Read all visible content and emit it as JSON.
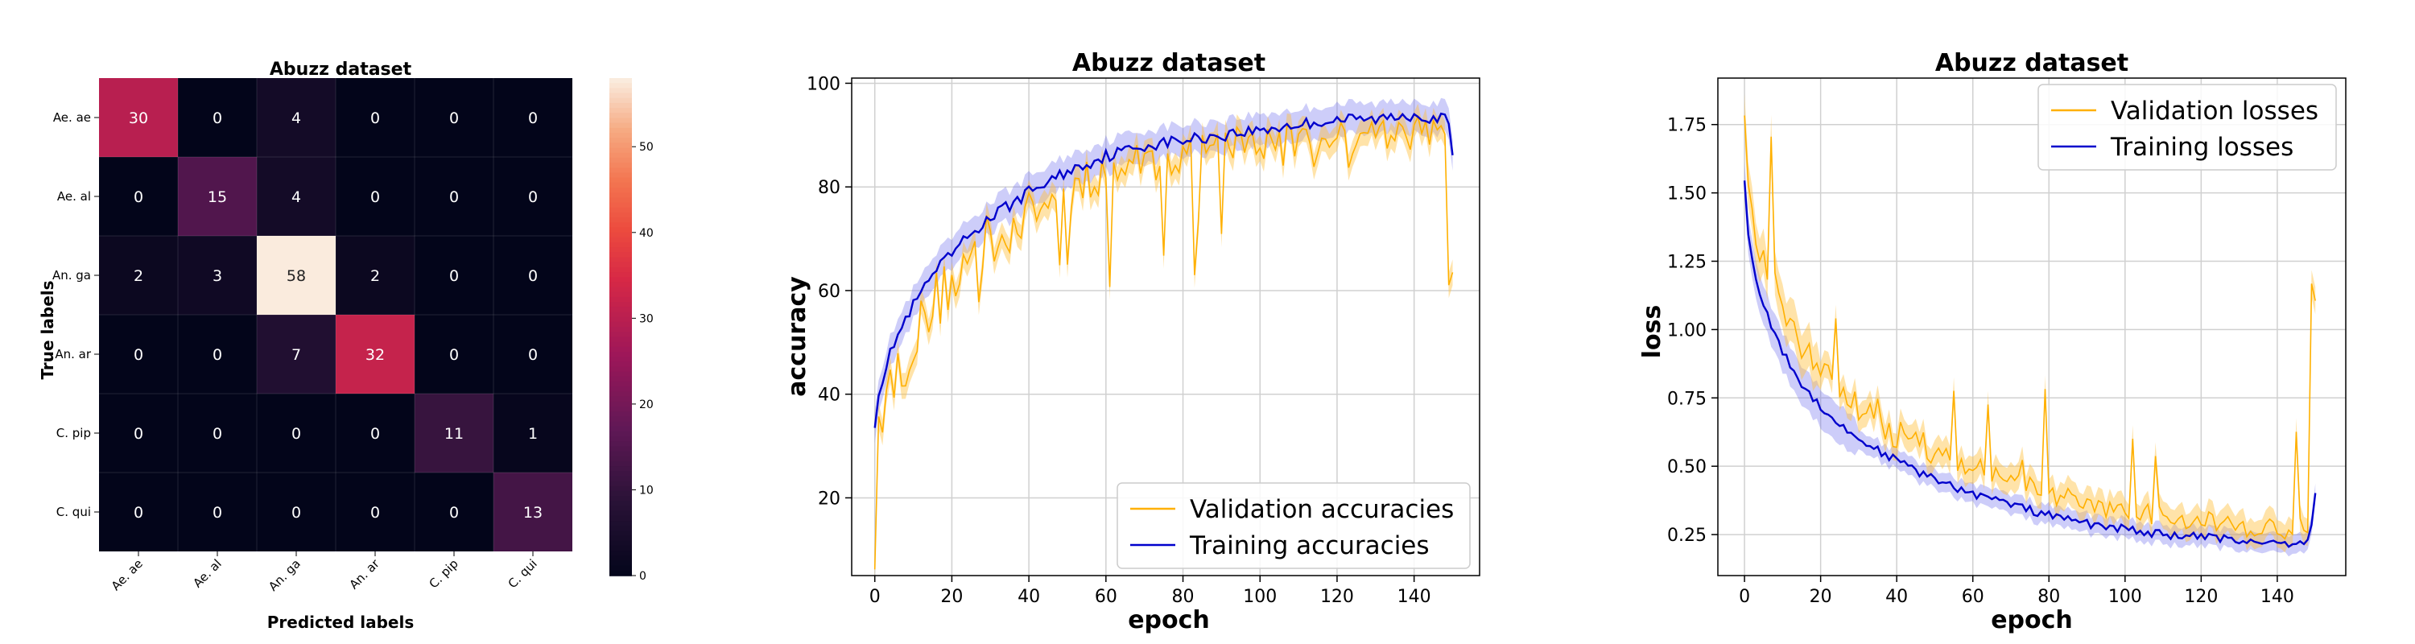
{
  "chart_data": [
    {
      "type": "heatmap",
      "title": "Abuzz dataset",
      "xlabel": "Predicted labels",
      "ylabel": "True labels",
      "x_categories": [
        "Ae. ae",
        "Ae. al",
        "An. ga",
        "An. ar",
        "C. pip",
        "C. qui"
      ],
      "y_categories": [
        "Ae. ae",
        "Ae. al",
        "An. ga",
        "An. ar",
        "C. pip",
        "C. qui"
      ],
      "values": [
        [
          30,
          0,
          4,
          0,
          0,
          0
        ],
        [
          0,
          15,
          4,
          0,
          0,
          0
        ],
        [
          2,
          3,
          58,
          2,
          0,
          0
        ],
        [
          0,
          0,
          7,
          32,
          0,
          0
        ],
        [
          0,
          0,
          0,
          0,
          11,
          1
        ],
        [
          0,
          0,
          0,
          0,
          0,
          13
        ]
      ],
      "colorbar": {
        "range": [
          0,
          58
        ],
        "ticks": [
          "0",
          "10",
          "20",
          "30",
          "40",
          "50"
        ],
        "colormap": "rocket"
      }
    },
    {
      "type": "line",
      "title": "Abuzz dataset",
      "xlabel": "epoch",
      "ylabel": "accuracy",
      "xlim": [
        -6,
        157
      ],
      "ylim": [
        5,
        101
      ],
      "xticks": [
        "0",
        "20",
        "40",
        "60",
        "80",
        "100",
        "120",
        "140"
      ],
      "yticks": [
        "20",
        "40",
        "60",
        "80",
        "100"
      ],
      "grid": true,
      "legend": "bottom-right",
      "series": [
        {
          "name": "Validation accuracies",
          "color": "#ffb000",
          "x": [
            0,
            1,
            2,
            5,
            10,
            15,
            20,
            25,
            30,
            40,
            50,
            60,
            70,
            80,
            90,
            100,
            110,
            120,
            130,
            140,
            148,
            149,
            150
          ],
          "y": [
            7,
            35,
            38,
            43,
            50,
            57,
            62,
            66,
            70,
            75,
            79,
            83,
            85,
            86,
            88,
            89,
            90,
            90,
            91,
            91,
            92,
            63,
            64
          ]
        },
        {
          "name": "Training accuracies",
          "color": "#0000cc",
          "x": [
            0,
            1,
            2,
            5,
            10,
            15,
            20,
            25,
            30,
            40,
            50,
            60,
            70,
            80,
            90,
            100,
            110,
            120,
            130,
            140,
            148,
            149,
            150
          ],
          "y": [
            34,
            40,
            43,
            50,
            57,
            63,
            67,
            71,
            74,
            79,
            83,
            86,
            88,
            89,
            90,
            91,
            92,
            93,
            93,
            94,
            93,
            92,
            86
          ]
        }
      ]
    },
    {
      "type": "line",
      "title": "Abuzz dataset",
      "xlabel": "epoch",
      "ylabel": "loss",
      "xlim": [
        -7,
        158
      ],
      "ylim": [
        0.1,
        1.92
      ],
      "xticks": [
        "0",
        "20",
        "40",
        "60",
        "80",
        "100",
        "120",
        "140"
      ],
      "yticks": [
        "0.25",
        "0.50",
        "0.75",
        "1.00",
        "1.25",
        "1.50",
        "1.75"
      ],
      "grid": true,
      "legend": "top-right",
      "series": [
        {
          "name": "Validation losses",
          "color": "#ffb000",
          "x": [
            0,
            1,
            2,
            5,
            10,
            15,
            20,
            25,
            30,
            40,
            50,
            60,
            70,
            80,
            90,
            100,
            110,
            120,
            130,
            140,
            148,
            149,
            150
          ],
          "y": [
            1.82,
            1.55,
            1.42,
            1.25,
            1.08,
            0.95,
            0.85,
            0.78,
            0.72,
            0.62,
            0.55,
            0.5,
            0.45,
            0.4,
            0.36,
            0.34,
            0.31,
            0.3,
            0.28,
            0.27,
            0.27,
            1.15,
            1.1
          ]
        },
        {
          "name": "Training losses",
          "color": "#0000cc",
          "x": [
            0,
            1,
            2,
            5,
            10,
            15,
            20,
            25,
            30,
            40,
            50,
            60,
            70,
            80,
            90,
            100,
            110,
            120,
            130,
            140,
            148,
            149,
            150
          ],
          "y": [
            1.56,
            1.35,
            1.25,
            1.08,
            0.92,
            0.8,
            0.72,
            0.65,
            0.6,
            0.52,
            0.45,
            0.4,
            0.36,
            0.32,
            0.29,
            0.27,
            0.25,
            0.24,
            0.23,
            0.22,
            0.22,
            0.3,
            0.4
          ]
        }
      ]
    }
  ]
}
